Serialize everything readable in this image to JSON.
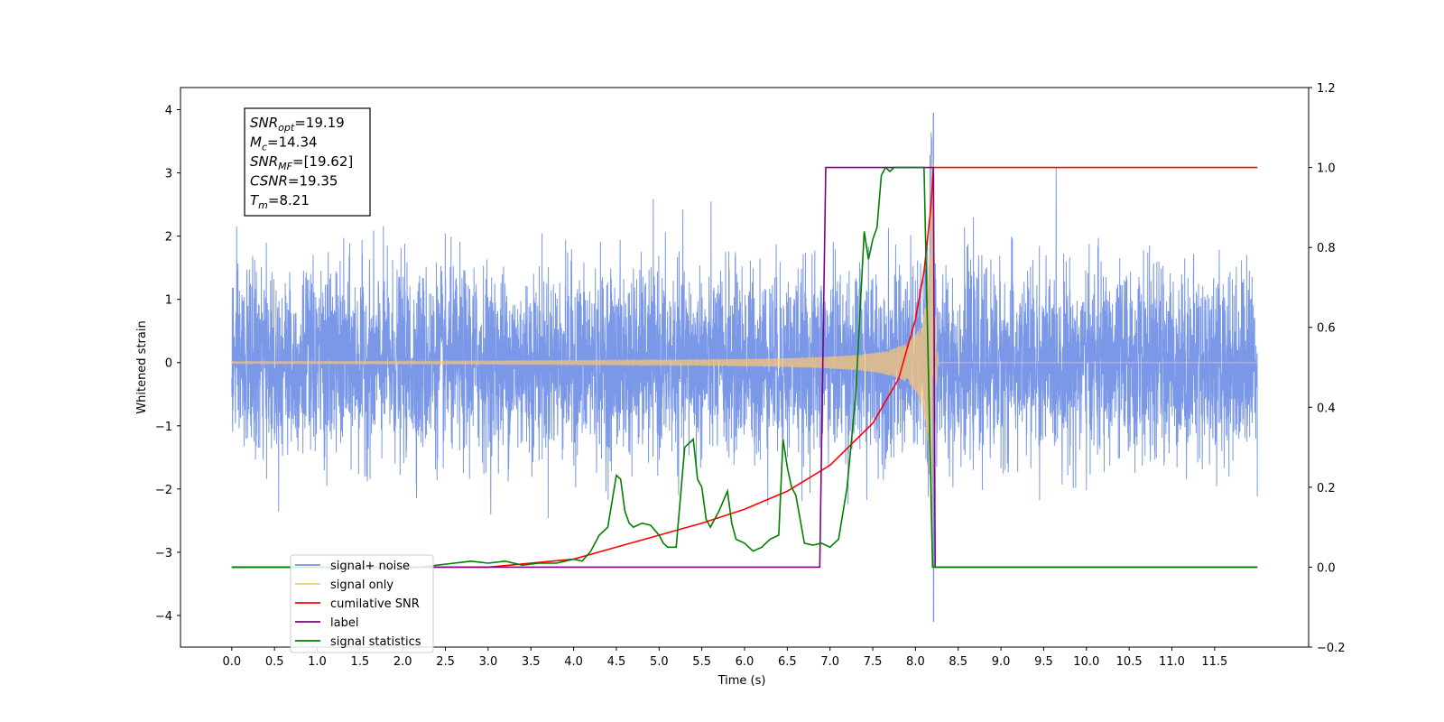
{
  "chart_data": {
    "type": "line",
    "xlabel": "Time (s)",
    "ylabel": "Whitened strain",
    "ylabel_right": "",
    "xlim": [
      -0.6,
      12.6
    ],
    "ylim": [
      -4.5,
      4.35
    ],
    "ylim_right": [
      -0.2,
      1.2
    ],
    "x_ticks": [
      "0.0",
      "0.5",
      "1.0",
      "1.5",
      "2.0",
      "2.5",
      "3.0",
      "3.5",
      "4.0",
      "4.5",
      "5.0",
      "5.5",
      "6.0",
      "6.5",
      "7.0",
      "7.5",
      "8.0",
      "8.5",
      "9.0",
      "9.5",
      "10.0",
      "10.5",
      "11.0",
      "11.5"
    ],
    "y_ticks": [
      "4",
      "3",
      "2",
      "1",
      "0",
      "−1",
      "−2",
      "−3",
      "−4"
    ],
    "y_ticks_right": [
      "1.2",
      "1.0",
      "0.8",
      "0.6",
      "0.4",
      "0.2",
      "0.0",
      "−0.2"
    ],
    "grid": false,
    "legend_position": "lower-left",
    "annotation": {
      "lines": [
        {
          "main": "SNR",
          "sub": "opt",
          "value": "=19.19"
        },
        {
          "main": "M",
          "sub": "c",
          "value": "=14.34"
        },
        {
          "main": "SNR",
          "sub": "MF",
          "value": "=[19.62]"
        },
        {
          "main": "CSNR",
          "sub": "",
          "value": "=19.35"
        },
        {
          "main": "T",
          "sub": "m",
          "value": "=8.21"
        }
      ]
    },
    "series": [
      {
        "name": "signal+ noise",
        "color": "#7392e6",
        "axis": "left",
        "description_values": {
          "x_range": [
            0.0,
            12.0
          ],
          "noise_std": 0.72,
          "max_peak": [
            8.21,
            3.95
          ],
          "min_peak": [
            8.21,
            -4.1
          ]
        }
      },
      {
        "name": "signal only",
        "color": "#ffc870",
        "axis": "left",
        "chirp": {
          "merger_time": 8.21,
          "peak_amplitude": 3.3,
          "x_range": [
            0.0,
            12.0
          ]
        }
      },
      {
        "name": "cumilative SNR",
        "color": "#ff0000",
        "axis": "right",
        "x": [
          0.0,
          3.0,
          4.0,
          4.5,
          5.0,
          5.5,
          6.0,
          6.5,
          7.0,
          7.5,
          7.8,
          8.0,
          8.1,
          8.18,
          8.21,
          12.0
        ],
        "y": [
          0.0,
          0.0,
          0.02,
          0.05,
          0.08,
          0.11,
          0.145,
          0.19,
          0.255,
          0.36,
          0.47,
          0.62,
          0.74,
          0.9,
          1.0,
          1.0
        ]
      },
      {
        "name": "label",
        "color": "#800080",
        "axis": "right",
        "x": [
          0.0,
          6.88,
          6.95,
          8.21,
          8.23,
          12.0
        ],
        "y": [
          0.0,
          0.0,
          1.0,
          1.0,
          0.0,
          0.0
        ]
      },
      {
        "name": "signal statistics",
        "color": "#008000",
        "axis": "right",
        "x": [
          0.0,
          2.2,
          2.6,
          2.8,
          3.0,
          3.2,
          3.4,
          3.6,
          3.8,
          4.0,
          4.1,
          4.2,
          4.3,
          4.4,
          4.5,
          4.55,
          4.6,
          4.65,
          4.7,
          4.8,
          4.9,
          5.0,
          5.05,
          5.1,
          5.2,
          5.3,
          5.4,
          5.45,
          5.5,
          5.55,
          5.6,
          5.7,
          5.8,
          5.85,
          5.9,
          6.0,
          6.1,
          6.2,
          6.3,
          6.4,
          6.45,
          6.5,
          6.55,
          6.6,
          6.7,
          6.8,
          6.9,
          7.0,
          7.1,
          7.2,
          7.3,
          7.4,
          7.45,
          7.5,
          7.55,
          7.6,
          7.65,
          7.7,
          7.75,
          7.8,
          7.85,
          7.9,
          8.0,
          8.1,
          8.15,
          8.2,
          8.25,
          12.0
        ],
        "y": [
          0.0,
          0.0,
          0.01,
          0.015,
          0.01,
          0.015,
          0.005,
          0.01,
          0.01,
          0.02,
          0.015,
          0.04,
          0.08,
          0.1,
          0.23,
          0.22,
          0.14,
          0.11,
          0.1,
          0.11,
          0.105,
          0.08,
          0.06,
          0.05,
          0.05,
          0.3,
          0.32,
          0.22,
          0.2,
          0.12,
          0.1,
          0.14,
          0.19,
          0.11,
          0.07,
          0.06,
          0.04,
          0.05,
          0.07,
          0.08,
          0.32,
          0.25,
          0.2,
          0.18,
          0.06,
          0.055,
          0.06,
          0.05,
          0.07,
          0.2,
          0.43,
          0.84,
          0.77,
          0.82,
          0.85,
          0.98,
          1.0,
          0.99,
          1.0,
          1.0,
          1.0,
          1.0,
          1.0,
          1.0,
          0.5,
          0.0,
          0.0,
          0.0
        ]
      }
    ]
  }
}
